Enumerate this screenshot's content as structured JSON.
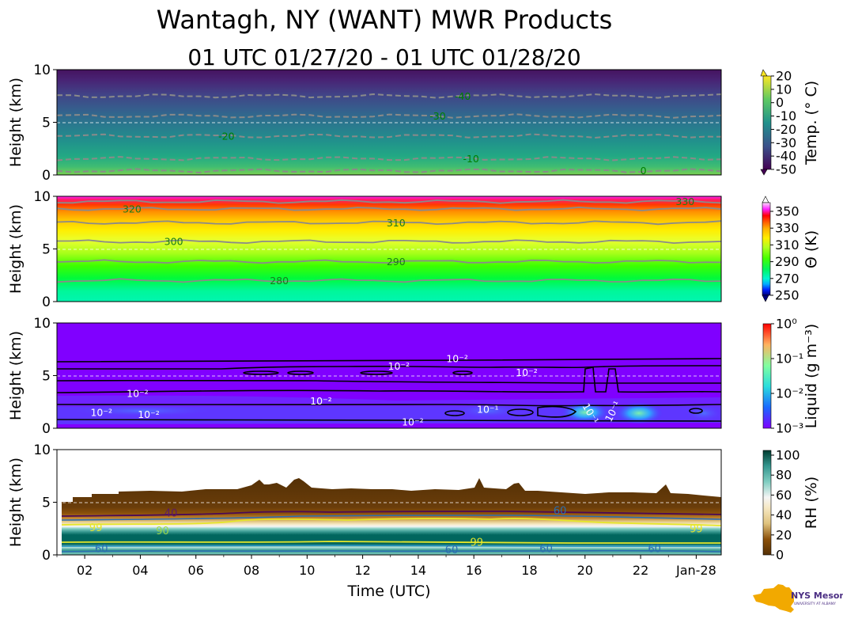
{
  "title": "Wantagh, NY (WANT) MWR Products",
  "subtitle": "01 UTC 01/27/20 - 01 UTC 01/28/20",
  "logo": {
    "text": "NYS Mesonet",
    "tagline": "UNIVERSITY AT ALBANY",
    "colors": {
      "state": "#f2a900",
      "text": "#4b2e83"
    }
  },
  "chart_data": [
    {
      "type": "heatmap",
      "panel": "temperature",
      "ylabel": "Height (km)",
      "ylim": [
        0,
        10
      ],
      "yticks": [
        "0",
        "5",
        "10"
      ],
      "xlim_hours": [
        1,
        24.9
      ],
      "colorbar": {
        "label": "Temp. (° C)",
        "ticks": [
          "20",
          "10",
          "0",
          "-10",
          "-20",
          "-30",
          "-40",
          "-50"
        ],
        "range": [
          -50,
          20
        ],
        "colormap": "viridis"
      },
      "contours": [
        {
          "label": "0",
          "height_km": 0.4,
          "label_hour": 22.1
        },
        {
          "label": "-10",
          "height_km": 1.55,
          "label_hour": 15.9
        },
        {
          "label": "-20",
          "height_km": 3.7,
          "label_hour": 7.1
        },
        {
          "label": "-30",
          "height_km": 5.6,
          "label_hour": 14.7
        },
        {
          "label": "-40",
          "height_km": 7.5,
          "label_hour": 15.6
        }
      ]
    },
    {
      "type": "heatmap",
      "panel": "potential_temperature",
      "ylabel": "Height (km)",
      "ylim": [
        0,
        10
      ],
      "yticks": [
        "0",
        "5",
        "10"
      ],
      "xlim_hours": [
        1,
        24.9
      ],
      "colorbar": {
        "label": "Θ (K)",
        "ticks": [
          "350",
          "330",
          "310",
          "290",
          "270",
          "250"
        ],
        "range": [
          250,
          360
        ],
        "colormap": "gist_ncar"
      },
      "contours": [
        {
          "label": "280",
          "height_km": 2.0,
          "label_hour": 9.0
        },
        {
          "label": "290",
          "height_km": 3.8,
          "label_hour": 13.2
        },
        {
          "label": "300",
          "height_km": 5.7,
          "label_hour": 5.2
        },
        {
          "label": "310",
          "height_km": 7.5,
          "label_hour": 13.2
        },
        {
          "label": "320",
          "height_km": 8.8,
          "label_hour": 3.7
        },
        {
          "label": "330",
          "height_km": 9.5,
          "label_hour": 23.6
        }
      ]
    },
    {
      "type": "heatmap",
      "panel": "liquid_water",
      "ylabel": "Height (km)",
      "ylim": [
        0,
        10
      ],
      "yticks": [
        "0",
        "5",
        "10"
      ],
      "xlim_hours": [
        1,
        24.9
      ],
      "colorbar": {
        "label": "Liquid (g m⁻³)",
        "ticks": [
          "10⁰",
          "10⁻¹",
          "10⁻²",
          "10⁻³"
        ],
        "range_log10": [
          -3,
          0
        ],
        "colormap": "rainbow"
      },
      "contour_labels": [
        {
          "text": "10⁻²",
          "hour": 15.4,
          "height_km": 6.6
        },
        {
          "text": "10⁻²",
          "hour": 13.3,
          "height_km": 5.9
        },
        {
          "text": "10⁻²",
          "hour": 17.9,
          "height_km": 5.3
        },
        {
          "text": "10⁻²",
          "hour": 3.9,
          "height_km": 3.3
        },
        {
          "text": "10⁻²",
          "hour": 10.5,
          "height_km": 2.6
        },
        {
          "text": "10⁻²",
          "hour": 2.6,
          "height_km": 1.5
        },
        {
          "text": "10⁻²",
          "hour": 4.3,
          "height_km": 1.3
        },
        {
          "text": "10⁻²",
          "hour": 13.8,
          "height_km": 0.6
        },
        {
          "text": "10⁻¹",
          "hour": 16.5,
          "height_km": 1.8
        },
        {
          "text": "10⁻¹",
          "hour": 20.2,
          "height_km": 1.4
        },
        {
          "text": "10⁻¹",
          "hour": 21.0,
          "height_km": 1.6
        }
      ]
    },
    {
      "type": "heatmap",
      "panel": "relative_humidity",
      "ylabel": "Height (km)",
      "ylim": [
        0,
        10
      ],
      "yticks": [
        "0",
        "5",
        "10"
      ],
      "xlabel": "Time (UTC)",
      "xticks": [
        "02",
        "04",
        "06",
        "08",
        "10",
        "12",
        "14",
        "16",
        "18",
        "20",
        "22",
        "Jan-28"
      ],
      "xtick_hours": [
        2,
        4,
        6,
        8,
        10,
        12,
        14,
        16,
        18,
        20,
        22,
        24
      ],
      "xlim_hours": [
        1,
        24.9
      ],
      "colorbar": {
        "label": "RH (%)",
        "ticks": [
          "100",
          "80",
          "60",
          "40",
          "20",
          "0"
        ],
        "range": [
          0,
          105
        ],
        "colormap": "BrBG"
      },
      "contour_labels": [
        {
          "text": "40",
          "hour": 5.1,
          "height_km": 4.0
        },
        {
          "text": "60",
          "hour": 19.1,
          "height_km": 4.2
        },
        {
          "text": "99",
          "hour": 2.4,
          "height_km": 2.6
        },
        {
          "text": "90",
          "hour": 4.8,
          "height_km": 2.3
        },
        {
          "text": "99",
          "hour": 24.0,
          "height_km": 2.5
        },
        {
          "text": "99",
          "hour": 16.1,
          "height_km": 1.2
        },
        {
          "text": "60",
          "hour": 2.6,
          "height_km": 0.6
        },
        {
          "text": "60",
          "hour": 15.2,
          "height_km": 0.5
        },
        {
          "text": "60",
          "hour": 18.6,
          "height_km": 0.6
        },
        {
          "text": "60",
          "hour": 22.5,
          "height_km": 0.6
        }
      ]
    }
  ]
}
